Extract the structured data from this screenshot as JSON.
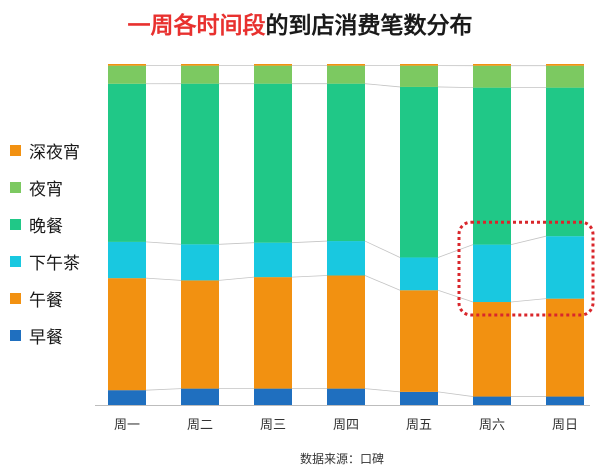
{
  "title": {
    "highlight": "一周各时间段",
    "rest": "的到店消费笔数分布"
  },
  "source": "数据来源：口碑",
  "colors": {
    "title_highlight": "#e8312f",
    "callout_border": "#d9262b"
  },
  "chart_data": {
    "type": "bar",
    "stacked": true,
    "normalized": true,
    "title": "一周各时间段的到店消费笔数分布",
    "categories": [
      "周一",
      "周二",
      "周三",
      "周四",
      "周五",
      "周六",
      "周日"
    ],
    "series": [
      {
        "name": "早餐",
        "color": "#1f6fbf",
        "values": [
          4.5,
          5.0,
          5.0,
          5.0,
          4.0,
          2.5,
          2.5
        ]
      },
      {
        "name": "午餐",
        "color": "#f29111",
        "values": [
          34.0,
          33.0,
          34.0,
          34.5,
          31.0,
          28.0,
          29.0
        ]
      },
      {
        "name": "下午茶",
        "color": "#19c8e0",
        "values": [
          11.0,
          11.0,
          10.5,
          10.5,
          10.0,
          17.0,
          18.5
        ]
      },
      {
        "name": "晚餐",
        "color": "#20c887",
        "values": [
          48.0,
          49.0,
          48.5,
          48.0,
          52.0,
          46.5,
          44.0
        ]
      },
      {
        "name": "夜宵",
        "color": "#7cc961",
        "values": [
          5.5,
          5.5,
          5.5,
          5.5,
          6.5,
          6.5,
          6.5
        ]
      },
      {
        "name": "深夜宵",
        "color": "#f29111",
        "values": [
          0.5,
          0.5,
          0.5,
          0.5,
          0.5,
          0.5,
          0.5
        ]
      }
    ],
    "legend_order": [
      "深夜宵",
      "夜宵",
      "晚餐",
      "下午茶",
      "午餐",
      "早餐"
    ],
    "legend_position": "left",
    "series_connector_lines": true,
    "ylim": [
      0,
      100
    ],
    "grid": false,
    "highlight": {
      "categories": [
        "周六",
        "周日"
      ],
      "series": "下午茶",
      "style": "dotted-rounded-rect"
    }
  }
}
